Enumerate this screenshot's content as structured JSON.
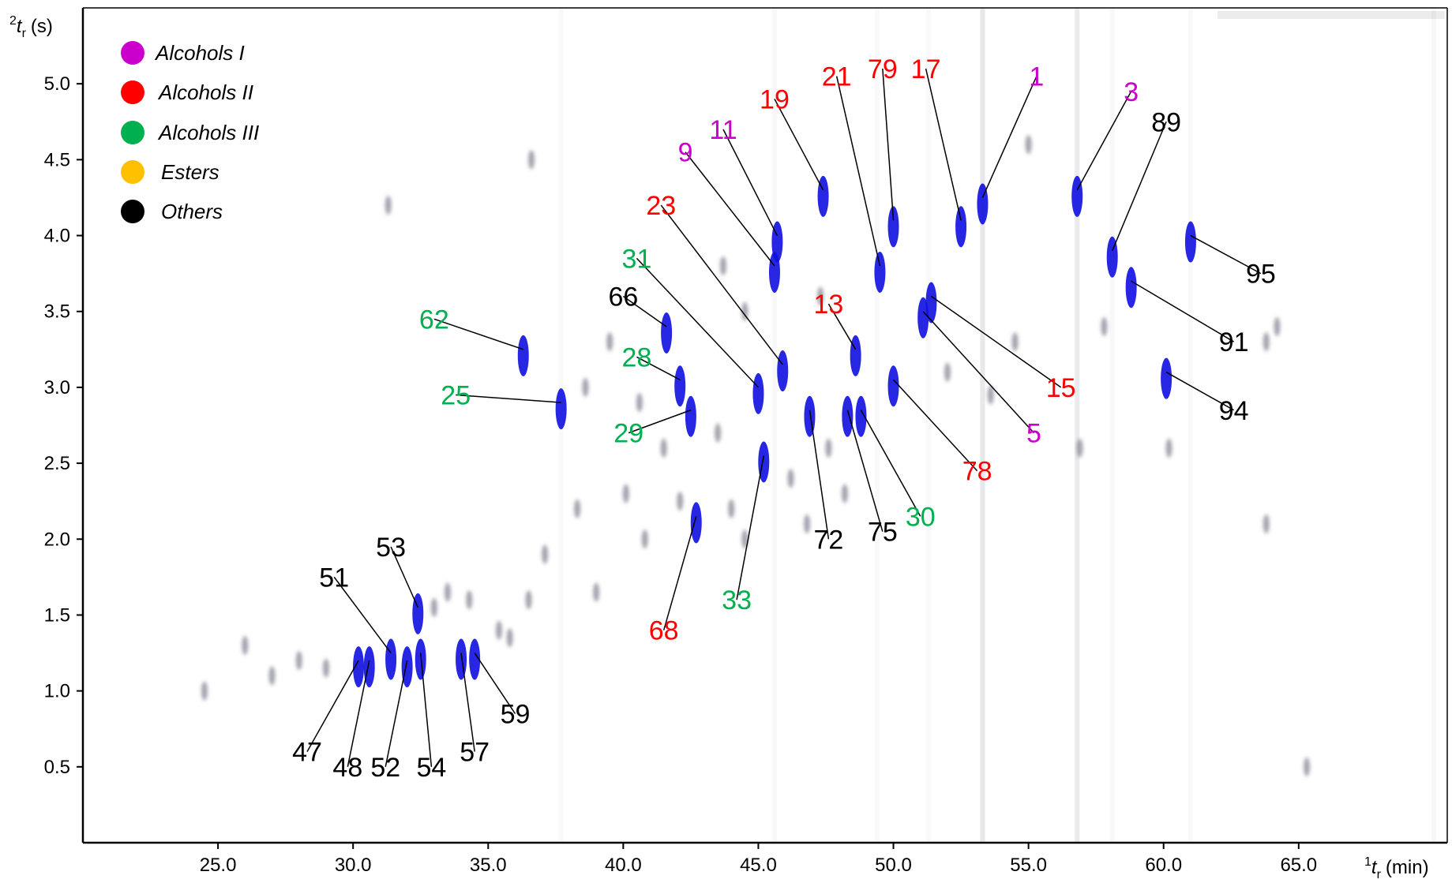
{
  "chart_data": {
    "type": "scatter",
    "subtype": "GCxGC contour plot",
    "xaxis": {
      "label_sup": "1",
      "label_main": "t",
      "label_sub": "r",
      "label_unit": "(min)",
      "range": [
        20.0,
        70.5
      ],
      "ticks": [
        "25.0",
        "30.0",
        "35.0",
        "40.0",
        "45.0",
        "50.0",
        "55.0",
        "60.0",
        "65.0"
      ],
      "tick_values": [
        25,
        30,
        35,
        40,
        45,
        50,
        55,
        60,
        65
      ]
    },
    "yaxis": {
      "label_sup": "2",
      "label_main": "t",
      "label_sub": "r",
      "label_unit": "(s)",
      "range": [
        -0.0,
        5.5
      ],
      "ticks": [
        "0.5",
        "1.0",
        "1.5",
        "2.0",
        "2.5",
        "3.0",
        "3.5",
        "4.0",
        "4.5",
        "5.0"
      ],
      "tick_values": [
        0.5,
        1.0,
        1.5,
        2.0,
        2.5,
        3.0,
        3.5,
        4.0,
        4.5,
        5.0
      ]
    },
    "grid": false,
    "legend_position": "top-left",
    "legend": [
      {
        "name": "Alcohols I",
        "color": "#cc00cc"
      },
      {
        "name": "Alcohols II",
        "color": "#ff0000"
      },
      {
        "name": "Alcohols III",
        "color": "#00b050"
      },
      {
        "name": "Esters",
        "color": "#ffc000"
      },
      {
        "name": "Others",
        "color": "#000000"
      }
    ],
    "peak_color": "#1010e0",
    "peaks": [
      {
        "id": "1",
        "class": "Alcohols I",
        "x": 53.3,
        "y": 4.25,
        "text_x": 55.3,
        "text_y": 5.05
      },
      {
        "id": "3",
        "class": "Alcohols I",
        "x": 56.8,
        "y": 4.3,
        "text_x": 58.8,
        "text_y": 4.95
      },
      {
        "id": "5",
        "class": "Alcohols I",
        "x": 51.1,
        "y": 3.5,
        "text_x": 55.2,
        "text_y": 2.7
      },
      {
        "id": "9",
        "class": "Alcohols I",
        "x": 45.6,
        "y": 3.8,
        "text_x": 42.3,
        "text_y": 4.55
      },
      {
        "id": "11",
        "class": "Alcohols I",
        "x": 45.7,
        "y": 4.0,
        "text_x": 43.7,
        "text_y": 4.7
      },
      {
        "id": "13",
        "class": "Alcohols II",
        "x": 48.6,
        "y": 3.25,
        "text_x": 47.6,
        "text_y": 3.55
      },
      {
        "id": "15",
        "class": "Alcohols II",
        "x": 51.4,
        "y": 3.6,
        "text_x": 56.2,
        "text_y": 3.0
      },
      {
        "id": "17",
        "class": "Alcohols II",
        "x": 52.5,
        "y": 4.1,
        "text_x": 51.2,
        "text_y": 5.1
      },
      {
        "id": "19",
        "class": "Alcohols II",
        "x": 47.4,
        "y": 4.3,
        "text_x": 45.6,
        "text_y": 4.9
      },
      {
        "id": "21",
        "class": "Alcohols II",
        "x": 49.5,
        "y": 3.8,
        "text_x": 47.9,
        "text_y": 5.05
      },
      {
        "id": "23",
        "class": "Alcohols II",
        "x": 45.9,
        "y": 3.15,
        "text_x": 41.4,
        "text_y": 4.2
      },
      {
        "id": "25",
        "class": "Alcohols III",
        "x": 37.7,
        "y": 2.9,
        "text_x": 33.8,
        "text_y": 2.95
      },
      {
        "id": "28",
        "class": "Alcohols III",
        "x": 42.1,
        "y": 3.05,
        "text_x": 40.5,
        "text_y": 3.2
      },
      {
        "id": "29",
        "class": "Alcohols III",
        "x": 42.5,
        "y": 2.85,
        "text_x": 40.2,
        "text_y": 2.7
      },
      {
        "id": "30",
        "class": "Alcohols III",
        "x": 48.8,
        "y": 2.85,
        "text_x": 51.0,
        "text_y": 2.15
      },
      {
        "id": "31",
        "class": "Alcohols III",
        "x": 45.0,
        "y": 3.0,
        "text_x": 40.5,
        "text_y": 3.85
      },
      {
        "id": "33",
        "class": "Alcohols III",
        "x": 45.2,
        "y": 2.55,
        "text_x": 44.2,
        "text_y": 1.6
      },
      {
        "id": "47",
        "class": "Others",
        "x": 30.2,
        "y": 1.2,
        "text_x": 28.3,
        "text_y": 0.6
      },
      {
        "id": "48",
        "class": "Others",
        "x": 30.6,
        "y": 1.2,
        "text_x": 29.8,
        "text_y": 0.5
      },
      {
        "id": "51",
        "class": "Others",
        "x": 31.4,
        "y": 1.25,
        "text_x": 29.3,
        "text_y": 1.75
      },
      {
        "id": "52",
        "class": "Others",
        "x": 32.0,
        "y": 1.2,
        "text_x": 31.2,
        "text_y": 0.5
      },
      {
        "id": "53",
        "class": "Others",
        "x": 32.4,
        "y": 1.55,
        "text_x": 31.4,
        "text_y": 1.95
      },
      {
        "id": "54",
        "class": "Others",
        "x": 32.5,
        "y": 1.25,
        "text_x": 32.9,
        "text_y": 0.5
      },
      {
        "id": "57",
        "class": "Others",
        "x": 34.0,
        "y": 1.25,
        "text_x": 34.5,
        "text_y": 0.6
      },
      {
        "id": "59",
        "class": "Others",
        "x": 34.5,
        "y": 1.25,
        "text_x": 36.0,
        "text_y": 0.85
      },
      {
        "id": "62",
        "class": "Alcohols III",
        "x": 36.3,
        "y": 3.25,
        "text_x": 33.0,
        "text_y": 3.45
      },
      {
        "id": "66",
        "class": "Others",
        "x": 41.6,
        "y": 3.4,
        "text_x": 40.0,
        "text_y": 3.6
      },
      {
        "id": "68",
        "class": "Alcohols II",
        "x": 42.7,
        "y": 2.15,
        "text_x": 41.5,
        "text_y": 1.4
      },
      {
        "id": "72",
        "class": "Others",
        "x": 46.9,
        "y": 2.85,
        "text_x": 47.6,
        "text_y": 2.0
      },
      {
        "id": "75",
        "class": "Others",
        "x": 48.3,
        "y": 2.85,
        "text_x": 49.6,
        "text_y": 2.05
      },
      {
        "id": "78",
        "class": "Alcohols II",
        "x": 50.0,
        "y": 3.05,
        "text_x": 53.1,
        "text_y": 2.45
      },
      {
        "id": "79",
        "class": "Alcohols II",
        "x": 50.0,
        "y": 4.1,
        "text_x": 49.6,
        "text_y": 5.1
      },
      {
        "id": "89",
        "class": "Others",
        "x": 58.1,
        "y": 3.9,
        "text_x": 60.1,
        "text_y": 4.75
      },
      {
        "id": "91",
        "class": "Others",
        "x": 58.8,
        "y": 3.7,
        "text_x": 62.6,
        "text_y": 3.3
      },
      {
        "id": "94",
        "class": "Others",
        "x": 60.1,
        "y": 3.1,
        "text_x": 62.6,
        "text_y": 2.85
      },
      {
        "id": "95",
        "class": "Others",
        "x": 61.0,
        "y": 4.0,
        "text_x": 63.6,
        "text_y": 3.75
      }
    ]
  }
}
